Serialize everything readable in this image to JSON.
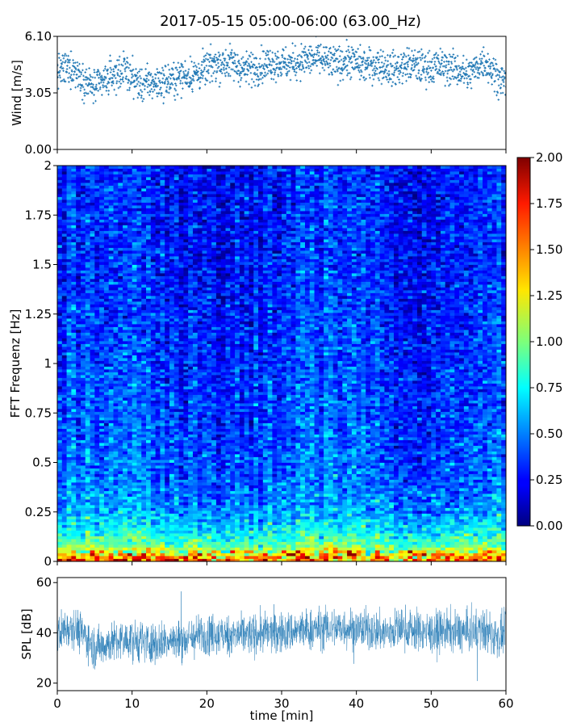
{
  "title": "2017-05-15 05:00-06:00 (63.00_Hz)",
  "colors": {
    "series": "#1f77b4",
    "colormap": "jet"
  },
  "chart_data": [
    {
      "type": "scatter",
      "ylabel": "Wind [m/s]",
      "xlim": [
        0,
        60
      ],
      "ylim": [
        0,
        6.1
      ],
      "yticks": [
        "0.00",
        "3.05",
        "6.10"
      ],
      "marker": "+",
      "trend": {
        "t": [
          0,
          2,
          4,
          5,
          7,
          9,
          11,
          13,
          15,
          17,
          19,
          21,
          23,
          25,
          27,
          29,
          31,
          33,
          35,
          37,
          39,
          41,
          43,
          45,
          47,
          49,
          51,
          53,
          55,
          57,
          59,
          60
        ],
        "v": [
          4.2,
          4.4,
          3.6,
          3.3,
          3.9,
          4.3,
          3.5,
          3.6,
          3.7,
          4.0,
          4.1,
          4.6,
          4.7,
          4.3,
          4.5,
          4.7,
          4.6,
          4.8,
          4.9,
          4.6,
          4.8,
          4.5,
          4.6,
          4.3,
          4.6,
          4.4,
          4.5,
          4.4,
          4.0,
          4.8,
          3.9,
          3.6
        ]
      },
      "spread": 0.45,
      "min": 1.7,
      "max": 6.1
    },
    {
      "type": "heatmap",
      "ylabel": "FFT Frequenz [Hz]",
      "xlim": [
        0,
        60
      ],
      "ylim": [
        0,
        2
      ],
      "yticks": [
        "0",
        "0.25",
        "0.5",
        "0.75",
        "1",
        "1.25",
        "1.5",
        "1.75",
        "2"
      ],
      "colorbar": {
        "range": [
          0,
          2
        ],
        "ticks": [
          "0.00",
          "0.25",
          "0.50",
          "0.75",
          "1.00",
          "1.25",
          "1.50",
          "1.75",
          "2.00"
        ]
      },
      "profile": {
        "freq": [
          0,
          0.03,
          0.08,
          0.15,
          0.25,
          0.4,
          0.6,
          1.0,
          1.5,
          2.0
        ],
        "level": [
          1.6,
          1.4,
          0.95,
          0.75,
          0.55,
          0.45,
          0.4,
          0.35,
          0.3,
          0.3
        ]
      }
    },
    {
      "type": "area",
      "ylabel": "SPL [dB]",
      "xlabel": "time [min]",
      "xlim": [
        0,
        60
      ],
      "ylim": [
        17,
        62
      ],
      "yticks": [
        "20",
        "40",
        "60"
      ],
      "xticks": [
        "0",
        "10",
        "20",
        "30",
        "40",
        "50",
        "60"
      ],
      "trend": {
        "t": [
          0,
          2,
          4,
          5,
          7,
          10,
          13,
          16,
          18,
          20,
          22,
          25,
          28,
          30,
          33,
          36,
          39,
          42,
          44,
          46,
          48,
          50,
          52,
          55,
          57,
          59,
          60
        ],
        "v": [
          40,
          43,
          38,
          34,
          36,
          37,
          36,
          37,
          38,
          40,
          39,
          39,
          40,
          40,
          41,
          42,
          42,
          41,
          40,
          42,
          41,
          40,
          41,
          40,
          41,
          38,
          40
        ]
      },
      "spread": 5,
      "min": 18,
      "max": 60
    }
  ]
}
